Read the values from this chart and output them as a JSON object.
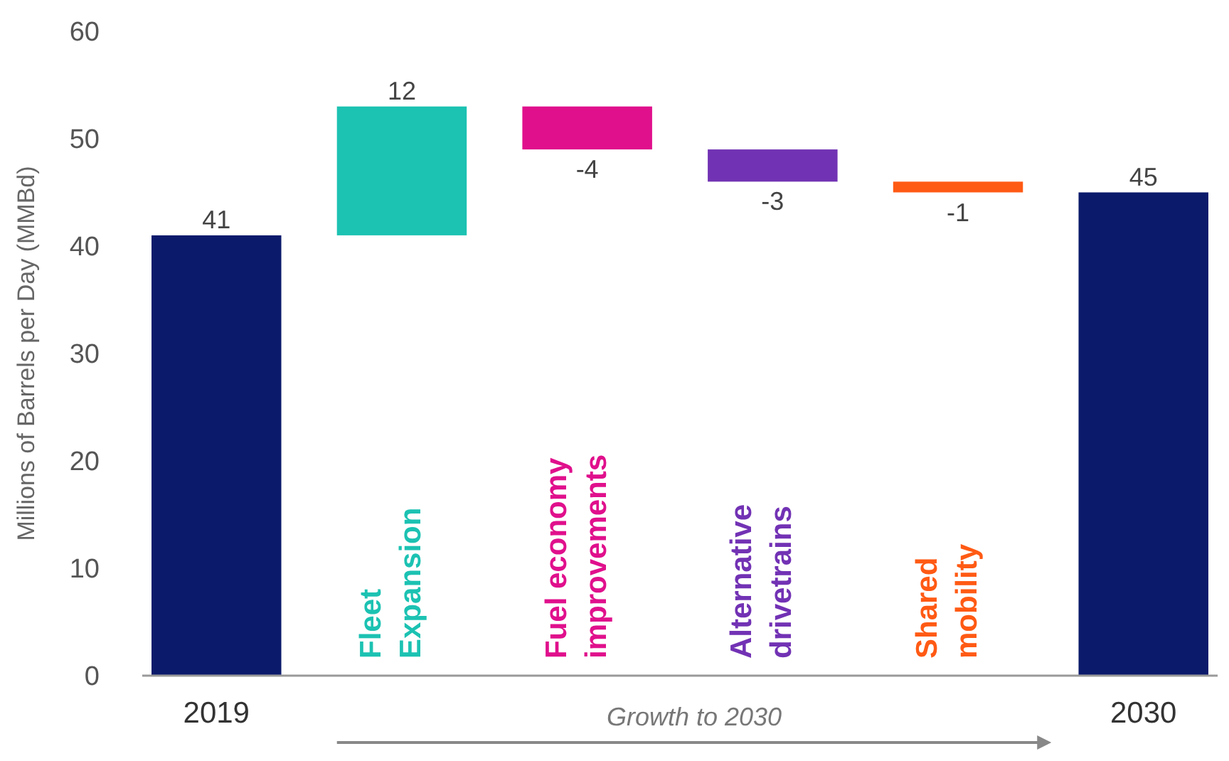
{
  "chart_data": {
    "type": "bar",
    "ylabel": "Millions of Barrels per Day (MMBd)",
    "categories": [
      "2019",
      "Fleet Expansion",
      "Fuel economy improvements",
      "Alternative drivetrains",
      "Shared mobility",
      "2030"
    ],
    "values": [
      41,
      12,
      -4,
      -3,
      -1,
      45
    ],
    "base": [
      null,
      41,
      53,
      49,
      46,
      null
    ],
    "colors": [
      "#0b1a6b",
      "#1cc2b2",
      "#e0108c",
      "#7232b4",
      "#ff5a14",
      "#0b1a6b"
    ],
    "ylim": [
      0,
      60
    ],
    "yticks": [
      0,
      10,
      20,
      30,
      40,
      50,
      60
    ],
    "data_labels": true,
    "annotations": [
      "Growth to 2030"
    ]
  }
}
